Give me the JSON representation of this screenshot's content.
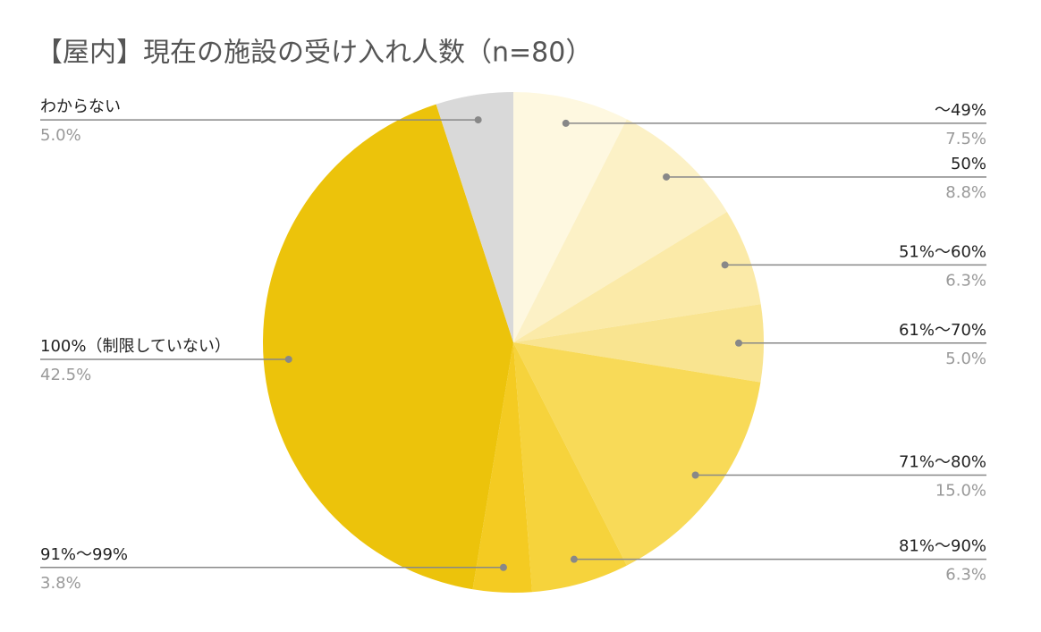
{
  "chart_data": {
    "type": "pie",
    "title": "【屋内】現在の施設の受け入れ人数（n=80）",
    "categories": [
      "～49%",
      "50%",
      "51%～60%",
      "61%～70%",
      "71%～80%",
      "81%～90%",
      "91%～99%",
      "100%（制限していない）",
      "わからない"
    ],
    "values": [
      7.5,
      8.8,
      6.3,
      5.0,
      15.0,
      6.3,
      3.8,
      42.5,
      5.0
    ],
    "value_labels": [
      "7.5%",
      "8.8%",
      "6.3%",
      "5.0%",
      "15.0%",
      "6.3%",
      "3.8%",
      "42.5%",
      "5.0%"
    ],
    "colors": [
      "#fef8e0",
      "#fcf1c6",
      "#fbeaa8",
      "#f9e490",
      "#f8da58",
      "#f6d33c",
      "#f4cb22",
      "#ecc30b",
      "#d9d9d9"
    ]
  }
}
